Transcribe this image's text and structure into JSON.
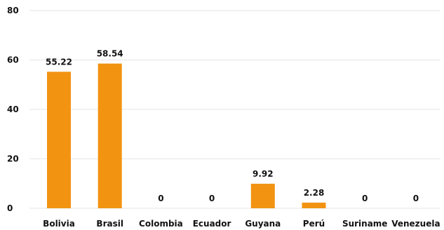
{
  "chart_data": {
    "type": "bar",
    "title": "",
    "xlabel": "",
    "ylabel": "",
    "categories": [
      "Bolivia",
      "Brasil",
      "Colombia",
      "Ecuador",
      "Guyana",
      "Perú",
      "Suriname",
      "Venezuela"
    ],
    "values": [
      55.22,
      58.54,
      0,
      0,
      9.92,
      2.28,
      0,
      0
    ],
    "data_labels": [
      "55.22",
      "58.54",
      "0",
      "0",
      "9.92",
      "2.28",
      "0",
      "0"
    ],
    "ylim": [
      0,
      80
    ],
    "yticks": [
      0,
      20,
      40,
      60,
      80
    ],
    "grid": "horizontal",
    "legend": "none",
    "bar_color": "#f29312",
    "grid_color": "#e6e6e6"
  }
}
